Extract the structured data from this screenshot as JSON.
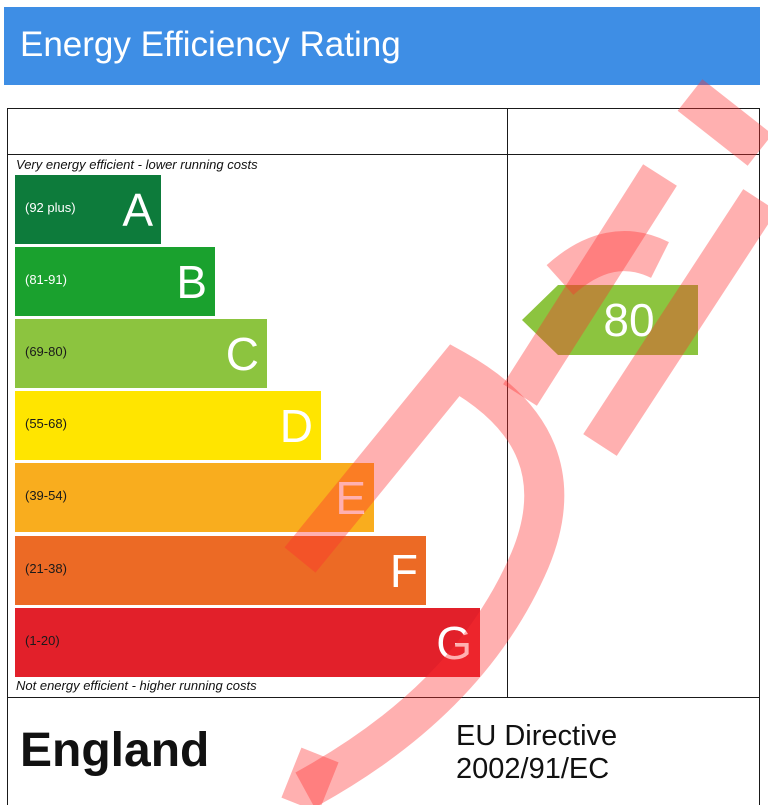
{
  "header": {
    "title": "Energy Efficiency Rating"
  },
  "chart_data": {
    "type": "bar",
    "title": "Energy Efficiency Rating",
    "top_note": "Very energy efficient - lower running costs",
    "bottom_note": "Not energy efficient - higher running costs",
    "bands": [
      {
        "letter": "A",
        "range": "(92 plus)",
        "color": "#0d7b3b",
        "range_color": "#ffffff"
      },
      {
        "letter": "B",
        "range": "(81-91)",
        "color": "#1aa12e",
        "range_color": "#ffffff"
      },
      {
        "letter": "C",
        "range": "(69-80)",
        "color": "#8cc43f",
        "range_color": "#1a1a1a"
      },
      {
        "letter": "D",
        "range": "(55-68)",
        "color": "#ffe500",
        "range_color": "#1a1a1a"
      },
      {
        "letter": "E",
        "range": "(39-54)",
        "color": "#f9ad1e",
        "range_color": "#1a1a1a"
      },
      {
        "letter": "F",
        "range": "(21-38)",
        "color": "#ec6a25",
        "range_color": "#1a1a1a"
      },
      {
        "letter": "G",
        "range": "(1-20)",
        "color": "#e2202a",
        "range_color": "#1a1a1a"
      }
    ],
    "current": {
      "value": "80",
      "band": "C",
      "color": "#8cc43f"
    }
  },
  "footer": {
    "country": "England",
    "directive_line1": "EU Directive",
    "directive_line2": "2002/91/EC"
  }
}
